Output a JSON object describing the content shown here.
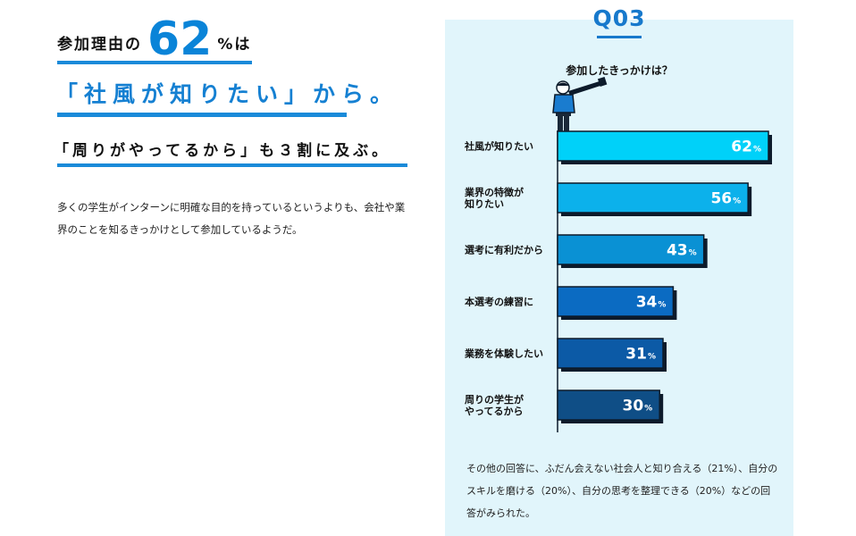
{
  "headline": {
    "prefix": "参加理由の",
    "big_number": "62",
    "percent_suffix": "%は",
    "line2": "「社風が知りたい」から。",
    "line3": "「周りがやってるから」も３割に及ぶ。"
  },
  "description": "多くの学生がインターンに明確な目的を持っているというよりも、会社や業界のことを知るきっかけとして参加しているようだ。",
  "panel": {
    "q_label": "Q03",
    "question": "参加したきっかけは？",
    "note": "その他の回答に、ふだん会えない社会人と知り合える（21%）、自分のスキルを磨ける（20%）、自分の思考を整理できる（20%）などの回答がみられた。"
  },
  "chart_data": {
    "type": "bar",
    "orientation": "horizontal",
    "categories": [
      [
        "社風が知りたい"
      ],
      [
        "業界の特徴が",
        "知りたい"
      ],
      [
        "選考に有利だから"
      ],
      [
        "本選考の練習に"
      ],
      [
        "業務を体験したい"
      ],
      [
        "周りの学生が",
        "やってるから"
      ]
    ],
    "values": [
      62,
      56,
      43,
      34,
      31,
      30
    ],
    "value_suffix": "%",
    "xlim": [
      0,
      62
    ],
    "colors": [
      "#00d1f9",
      "#0cb1eb",
      "#0a91d4",
      "#0b6bc2",
      "#0c5aa6",
      "#0f4e86"
    ],
    "bar_stroke": "#0d1b2b"
  }
}
